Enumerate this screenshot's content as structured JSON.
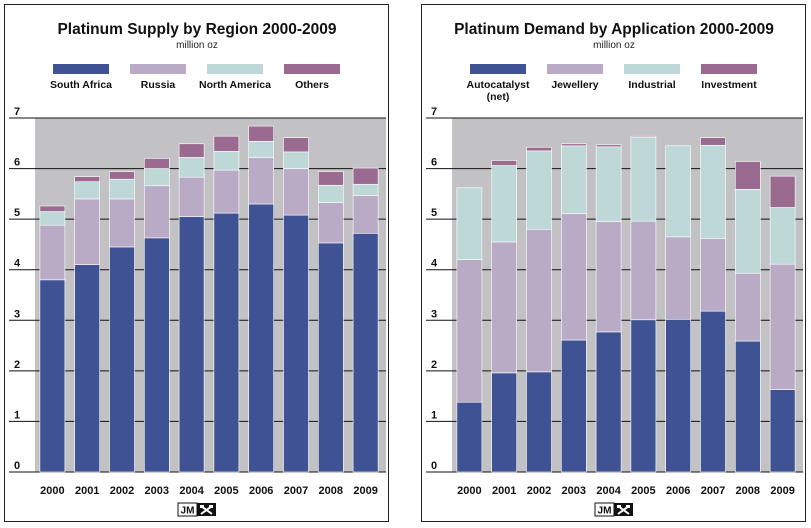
{
  "colors": {
    "plot_bg": "#c2c2c4",
    "grid": "#111111",
    "bar_outline": "#ffffff"
  },
  "logo": {
    "text": "JM",
    "icon": "jm-crossed-hammers-icon"
  },
  "chart_data": [
    {
      "type": "bar",
      "stacked": true,
      "title": "Platinum Supply by Region 2000-2009",
      "subtitle": "million oz",
      "categories": [
        "2000",
        "2001",
        "2002",
        "2003",
        "2004",
        "2005",
        "2006",
        "2007",
        "2008",
        "2009"
      ],
      "series": [
        {
          "name": "South Africa",
          "color": "#3f5294",
          "values": [
            3.8,
            4.1,
            4.45,
            4.63,
            5.05,
            5.12,
            5.3,
            5.08,
            4.53,
            4.72
          ]
        },
        {
          "name": "Russia",
          "color": "#b9abc5",
          "values": [
            1.08,
            1.3,
            0.95,
            1.03,
            0.78,
            0.85,
            0.92,
            0.92,
            0.8,
            0.75
          ]
        },
        {
          "name": "North America",
          "color": "#bed8d7",
          "values": [
            0.27,
            0.34,
            0.39,
            0.34,
            0.39,
            0.37,
            0.32,
            0.33,
            0.34,
            0.22
          ]
        },
        {
          "name": "Others",
          "color": "#9a6a90",
          "values": [
            0.11,
            0.1,
            0.15,
            0.2,
            0.27,
            0.3,
            0.3,
            0.28,
            0.27,
            0.32
          ]
        }
      ],
      "yticks": [
        "0",
        "1",
        "2",
        "3",
        "4",
        "5",
        "6",
        "7"
      ],
      "ylim": [
        0,
        7
      ],
      "grid": true,
      "legend_position": "top"
    },
    {
      "type": "bar",
      "stacked": true,
      "title": "Platinum Demand by Application 2000-2009",
      "subtitle": "million oz",
      "categories": [
        "2000",
        "2001",
        "2002",
        "2003",
        "2004",
        "2005",
        "2006",
        "2007",
        "2008",
        "2009"
      ],
      "series": [
        {
          "name": "Autocatalyst (net)",
          "legend_lines": [
            "Autocatalyst",
            "(net)"
          ],
          "color": "#3f5294",
          "values": [
            1.38,
            1.96,
            1.98,
            2.61,
            2.77,
            3.01,
            3.02,
            3.18,
            2.59,
            1.63
          ]
        },
        {
          "name": "Jewellery",
          "color": "#b9abc5",
          "values": [
            2.82,
            2.59,
            2.82,
            2.5,
            2.18,
            1.95,
            1.63,
            1.44,
            1.34,
            2.48
          ]
        },
        {
          "name": "Industrial",
          "color": "#bed8d7",
          "values": [
            1.42,
            1.51,
            1.55,
            1.34,
            1.48,
            1.66,
            1.8,
            1.84,
            1.66,
            1.12
          ]
        },
        {
          "name": "Investment",
          "color": "#9a6a90",
          "values": [
            0,
            0.1,
            0.07,
            0.04,
            0.04,
            0.02,
            0,
            0.15,
            0.55,
            0.62
          ]
        }
      ],
      "yticks": [
        "0",
        "1",
        "2",
        "3",
        "4",
        "5",
        "6",
        "7"
      ],
      "ylim": [
        0,
        7
      ],
      "grid": true,
      "legend_position": "top"
    }
  ]
}
